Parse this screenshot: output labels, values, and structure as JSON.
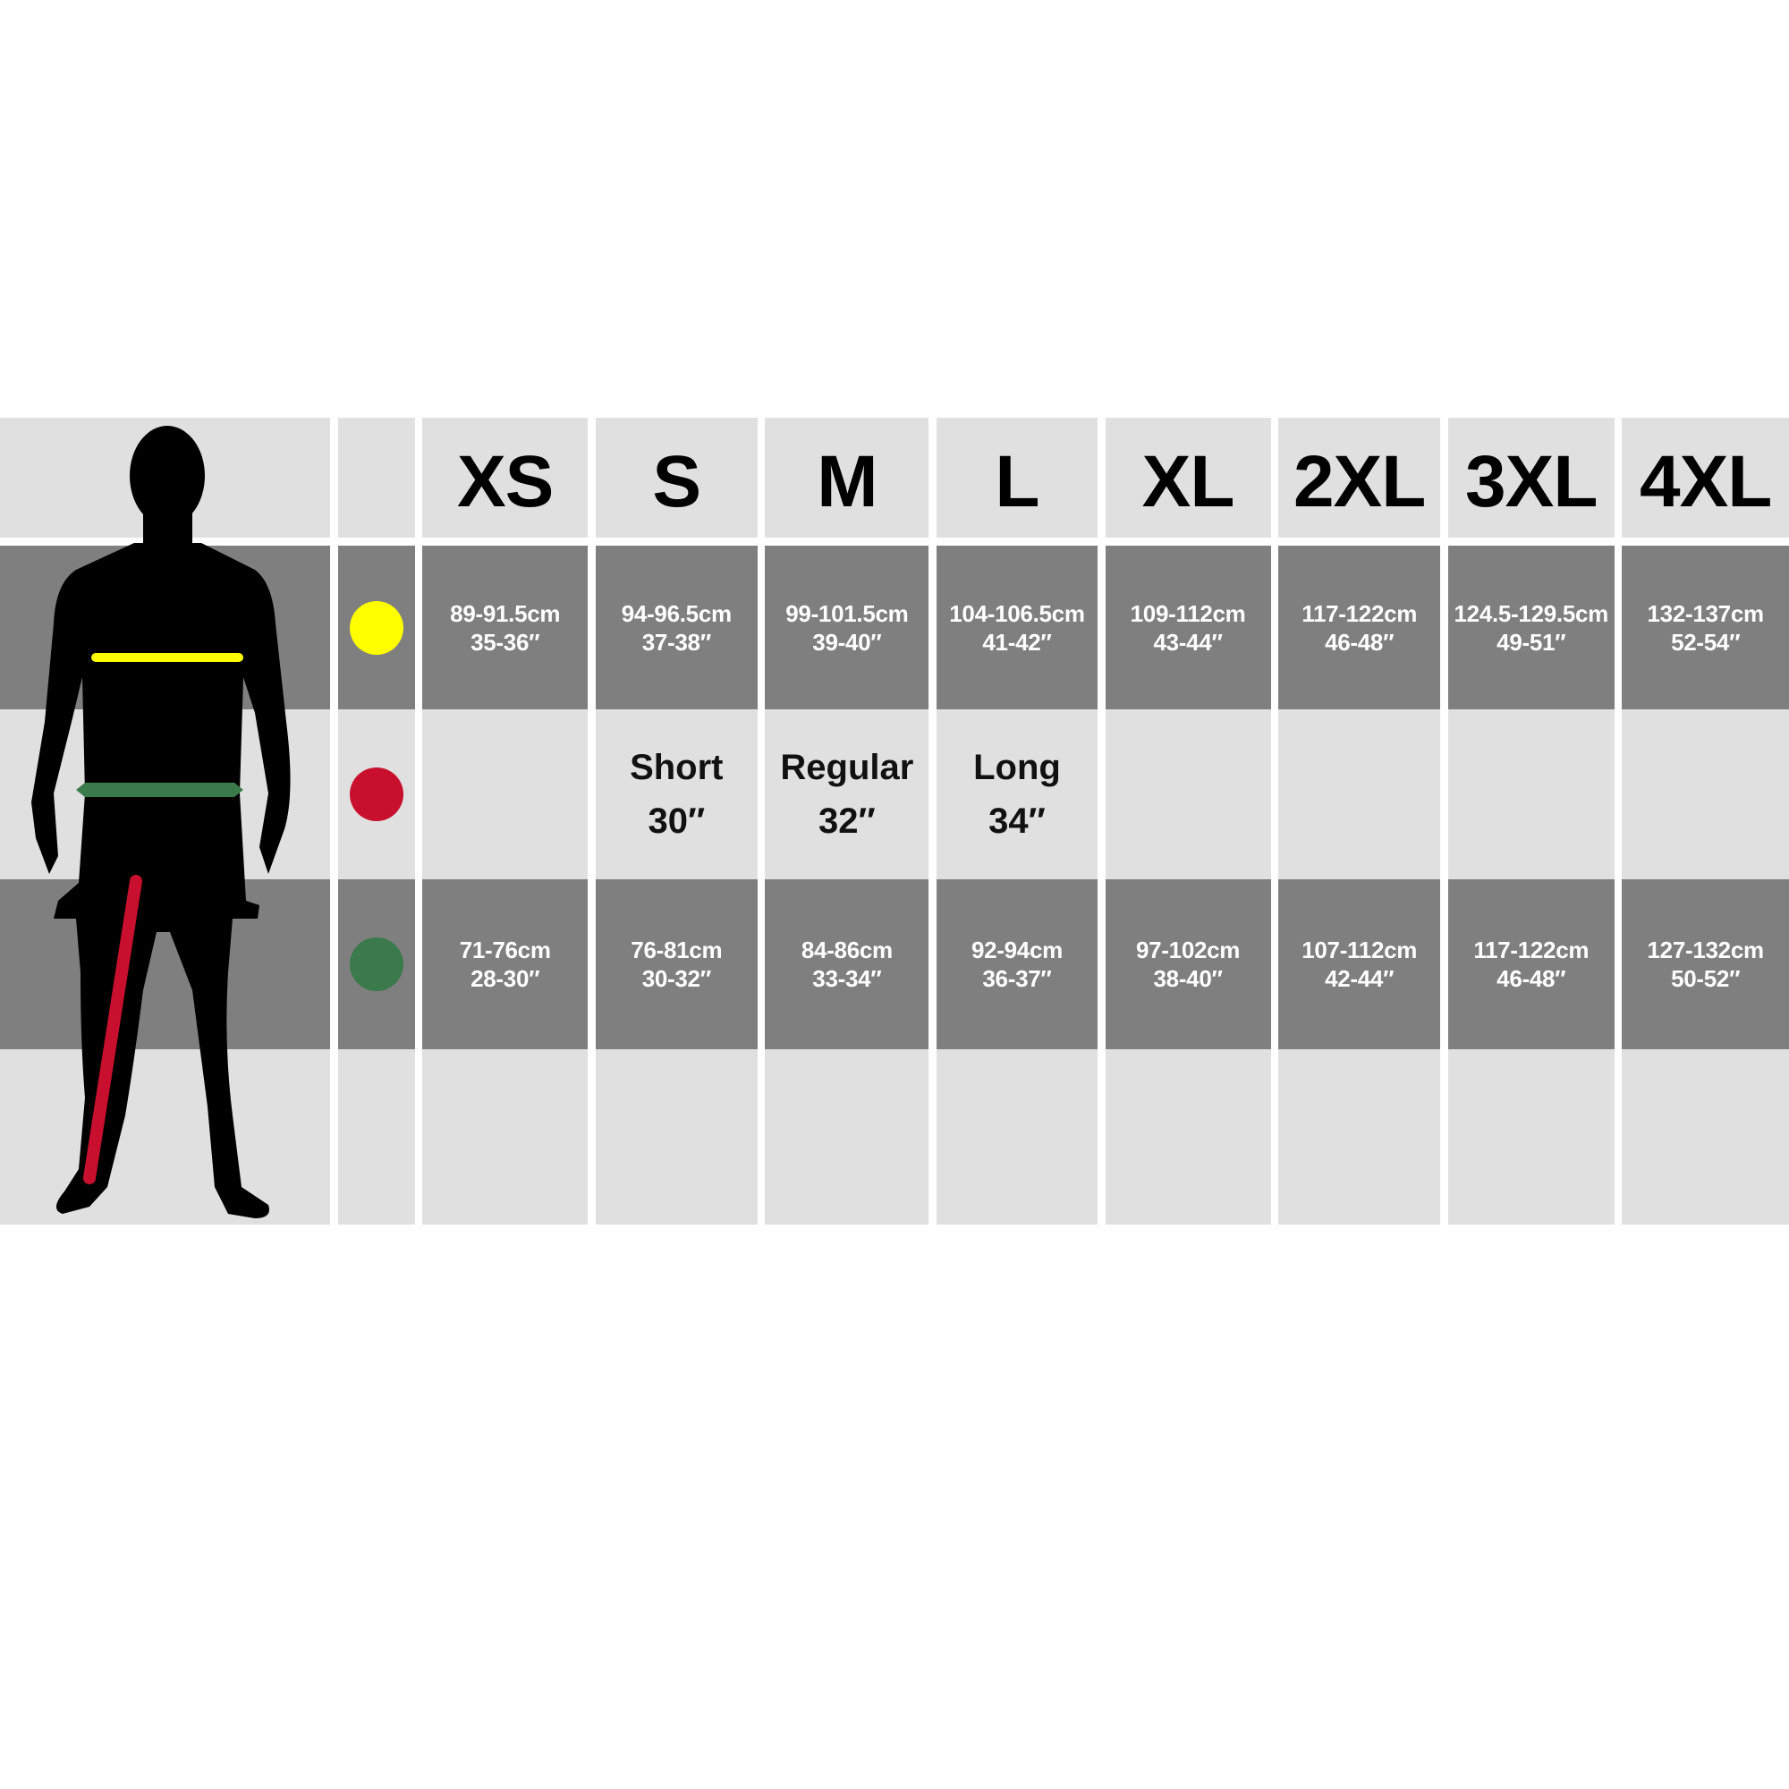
{
  "sizes": [
    "XS",
    "S",
    "M",
    "L",
    "XL",
    "2XL",
    "3XL",
    "4XL"
  ],
  "rows": {
    "chest": {
      "color": "#ffff00",
      "cm": [
        "89-91.5cm",
        "94-96.5cm",
        "99-101.5cm",
        "104-106.5cm",
        "109-112cm",
        "117-122cm",
        "124.5-129.5cm",
        "132-137cm"
      ],
      "inch": [
        "35-36″",
        "37-38″",
        "39-40″",
        "41-42″",
        "43-44″",
        "46-48″",
        "49-51″",
        "52-54″"
      ]
    },
    "inseam": {
      "color": "#c8102e",
      "labels": [
        "",
        "Short",
        "Regular",
        "Long",
        "",
        "",
        "",
        ""
      ],
      "values": [
        "",
        "30″",
        "32″",
        "34″",
        "",
        "",
        "",
        ""
      ]
    },
    "waist": {
      "color": "#3b7a4b",
      "cm": [
        "71-76cm",
        "76-81cm",
        "84-86cm",
        "92-94cm",
        "97-102cm",
        "107-112cm",
        "117-122cm",
        "127-132cm"
      ],
      "inch": [
        "28-30″",
        "30-32″",
        "33-34″",
        "36-37″",
        "38-40″",
        "42-44″",
        "46-48″",
        "50-52″"
      ]
    }
  },
  "colors": {
    "light_cell": "#e0e0e0",
    "dark_cell": "#7f7f7f"
  }
}
